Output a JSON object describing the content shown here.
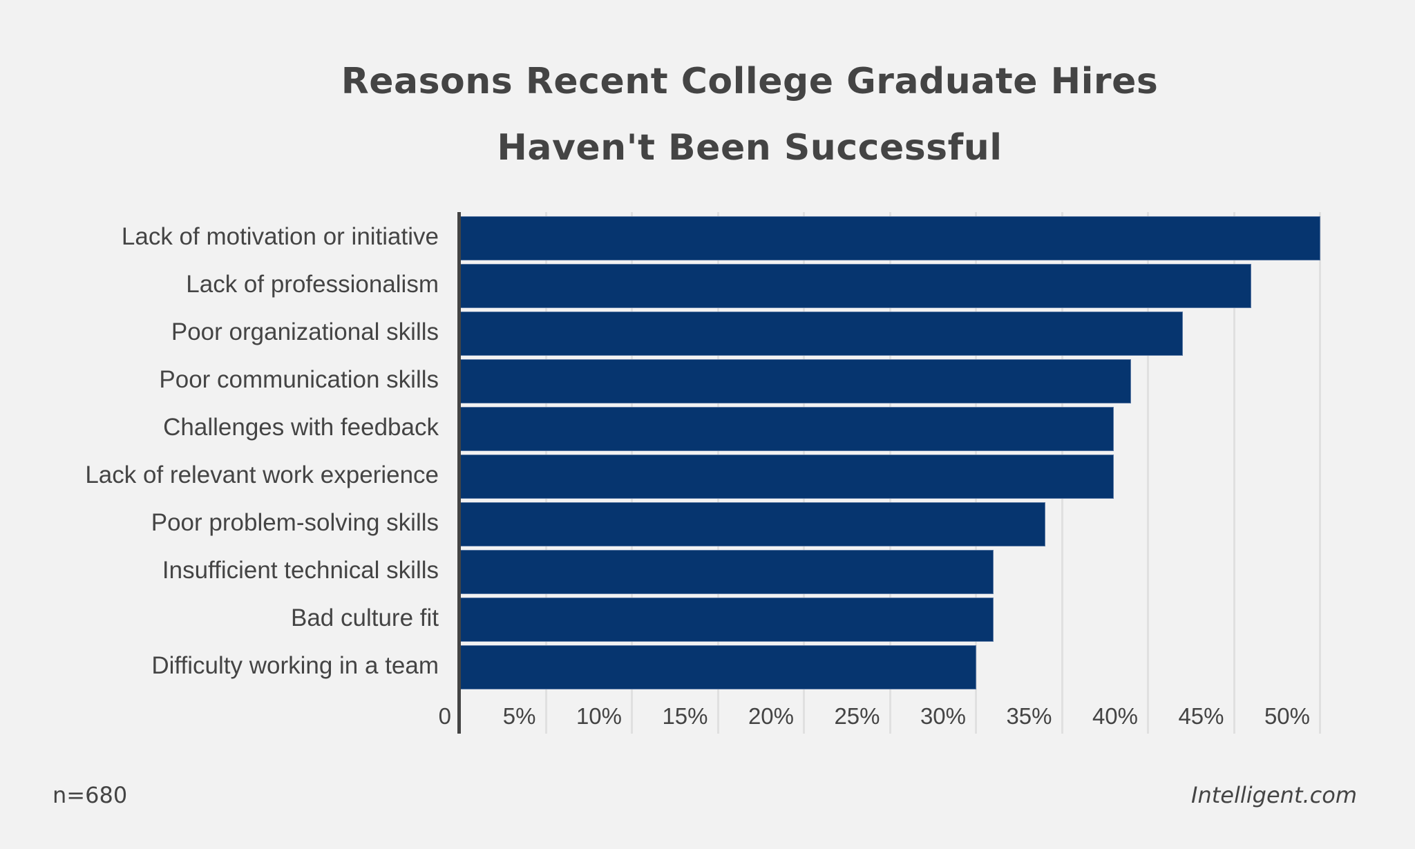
{
  "title": {
    "line1": "Reasons Recent College Graduate Hires",
    "line2": "Haven't Been Successful"
  },
  "footer": {
    "sample_size": "n=680",
    "source": "Intelligent.com"
  },
  "colors": {
    "bar": "#06356f",
    "background": "#f2f2f2",
    "text": "#444444",
    "grid": "#e0e0e0"
  },
  "chart_data": {
    "type": "bar",
    "orientation": "horizontal",
    "title": "Reasons Recent College Graduate Hires Haven't Been Successful",
    "xlabel": "",
    "ylabel": "",
    "categories": [
      "Lack of motivation or initiative",
      "Lack of professionalism",
      "Poor organizational skills",
      "Poor communication skills",
      "Challenges with feedback",
      "Lack of relevant work experience",
      "Poor problem-solving skills",
      "Insufficient technical skills",
      "Bad culture fit",
      "Difficulty working in a team"
    ],
    "values": [
      50,
      46,
      42,
      39,
      38,
      38,
      34,
      31,
      31,
      30
    ],
    "unit": "%",
    "xlim": [
      0,
      50
    ],
    "x_ticks": [
      "0",
      "5%",
      "10%",
      "15%",
      "20%",
      "25%",
      "30%",
      "35%",
      "40%",
      "45%",
      "50%"
    ],
    "grid": true,
    "legend": "none",
    "annotations": [
      "n=680",
      "Intelligent.com"
    ]
  }
}
